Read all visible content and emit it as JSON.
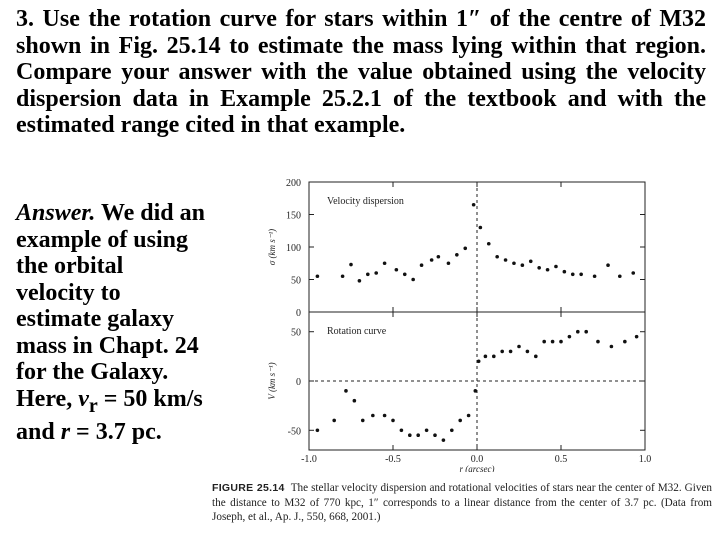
{
  "question": "3. Use the rotation curve for stars within 1″ of the centre of M32 shown in Fig. 25.14 to estimate the mass lying within that region. Compare your answer with the value obtained using the velocity dispersion data in Example 25.2.1 of the textbook and with the estimated range cited in that example.",
  "answer": {
    "label": "Answer.",
    "text1": " We did an example of using the orbital velocity to estimate galaxy mass in Chapt. 24 for the Galaxy. Here, ",
    "var_v": "v",
    "var_sub": "r",
    "text2": " = 50 km/s and ",
    "var_r": "r",
    "text3": " = 3.7 pc."
  },
  "caption": {
    "label": "FIGURE 25.14",
    "text": "The stellar velocity dispersion and rotational velocities of stars near the center of M32. Given the distance to M32 of 770 kpc, 1″ corresponds to a linear distance from the center of 3.7 pc. (Data from Joseph, et al., Ap. J., 550, 668, 2001.)"
  },
  "chart_data": [
    {
      "type": "scatter",
      "title": "Velocity dispersion",
      "xlabel": "",
      "ylabel": "σ (km s⁻¹)",
      "xlim": [
        -1.0,
        1.0
      ],
      "ylim": [
        0,
        200
      ],
      "yticks": [
        0,
        50,
        100,
        150,
        200
      ],
      "x": [
        -0.95,
        -0.8,
        -0.75,
        -0.7,
        -0.65,
        -0.6,
        -0.55,
        -0.48,
        -0.43,
        -0.38,
        -0.33,
        -0.27,
        -0.23,
        -0.17,
        -0.12,
        -0.07,
        -0.02,
        0.02,
        0.07,
        0.12,
        0.17,
        0.22,
        0.27,
        0.32,
        0.37,
        0.42,
        0.47,
        0.52,
        0.57,
        0.62,
        0.7,
        0.78,
        0.85,
        0.93
      ],
      "y": [
        55,
        55,
        73,
        48,
        58,
        60,
        75,
        65,
        58,
        50,
        72,
        80,
        85,
        75,
        88,
        98,
        165,
        130,
        105,
        85,
        80,
        75,
        72,
        78,
        68,
        65,
        70,
        62,
        58,
        58,
        55,
        72,
        55,
        60
      ]
    },
    {
      "type": "scatter",
      "title": "Rotation curve",
      "xlabel": "r (arcsec)",
      "ylabel": "V (km s⁻¹)",
      "xlim": [
        -1.0,
        1.0
      ],
      "ylim": [
        -70,
        70
      ],
      "yticks": [
        -50,
        0,
        50
      ],
      "xticks": [
        -1.0,
        -0.5,
        0.0,
        0.5,
        1.0
      ],
      "x": [
        -0.95,
        -0.85,
        -0.78,
        -0.73,
        -0.68,
        -0.62,
        -0.55,
        -0.5,
        -0.45,
        -0.4,
        -0.35,
        -0.3,
        -0.25,
        -0.2,
        -0.15,
        -0.1,
        -0.05,
        -0.01,
        0.01,
        0.05,
        0.1,
        0.15,
        0.2,
        0.25,
        0.3,
        0.35,
        0.4,
        0.45,
        0.5,
        0.55,
        0.6,
        0.65,
        0.72,
        0.8,
        0.88,
        0.95
      ],
      "y": [
        -50,
        -40,
        -10,
        -20,
        -40,
        -35,
        -35,
        -40,
        -50,
        -55,
        -55,
        -50,
        -55,
        -60,
        -50,
        -40,
        -35,
        -10,
        20,
        25,
        25,
        30,
        30,
        35,
        30,
        25,
        40,
        40,
        40,
        45,
        50,
        50,
        40,
        35,
        40,
        45
      ]
    }
  ]
}
